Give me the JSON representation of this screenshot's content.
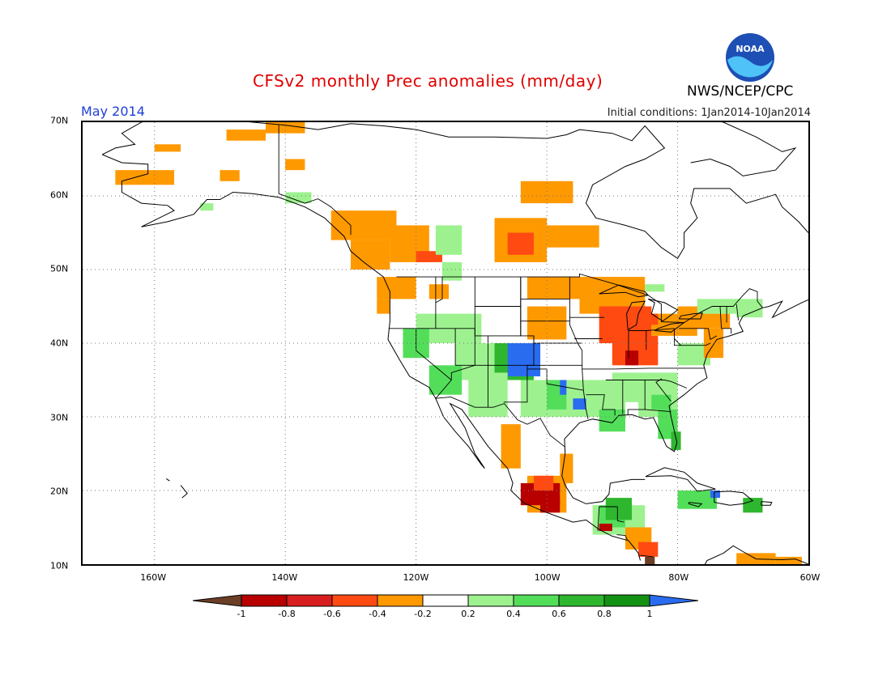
{
  "header": {
    "title": "CFSv2 monthly Prec anomalies (mm/day)",
    "agency": "NWS/NCEP/CPC",
    "logo_text": "NOAA",
    "month": "May 2014",
    "initial_conditions": "Initial conditions: 1Jan2014-10Jan2014"
  },
  "axes": {
    "lat_labels": [
      "70N",
      "60N",
      "50N",
      "40N",
      "30N",
      "20N",
      "10N"
    ],
    "lon_labels": [
      "160W",
      "140W",
      "120W",
      "100W",
      "80W",
      "60W"
    ]
  },
  "colorbar": {
    "labels": [
      "-1",
      "-0.8",
      "-0.6",
      "-0.4",
      "-0.2",
      "0.2",
      "0.4",
      "0.6",
      "0.8",
      "1"
    ],
    "colors": [
      "#6b3e26",
      "#b80000",
      "#d81e1e",
      "#ff4a12",
      "#ff9900",
      "#ffffff",
      "#9df28f",
      "#53de5a",
      "#2fb62f",
      "#139113",
      "#2a6cf0"
    ]
  },
  "map": {
    "extent": {
      "lon_min": -171,
      "lon_max": -60,
      "lat_min": 10,
      "lat_max": 70
    },
    "anomaly_colors": {
      "-1": "#6b3e26",
      "-0.8": "#b80000",
      "-0.6": "#ff4a12",
      "-0.4": "#ff9900",
      "0.2": "#9df28f",
      "0.4": "#53de5a",
      "0.6": "#2fb62f",
      "1": "#2a6cf0"
    }
  }
}
